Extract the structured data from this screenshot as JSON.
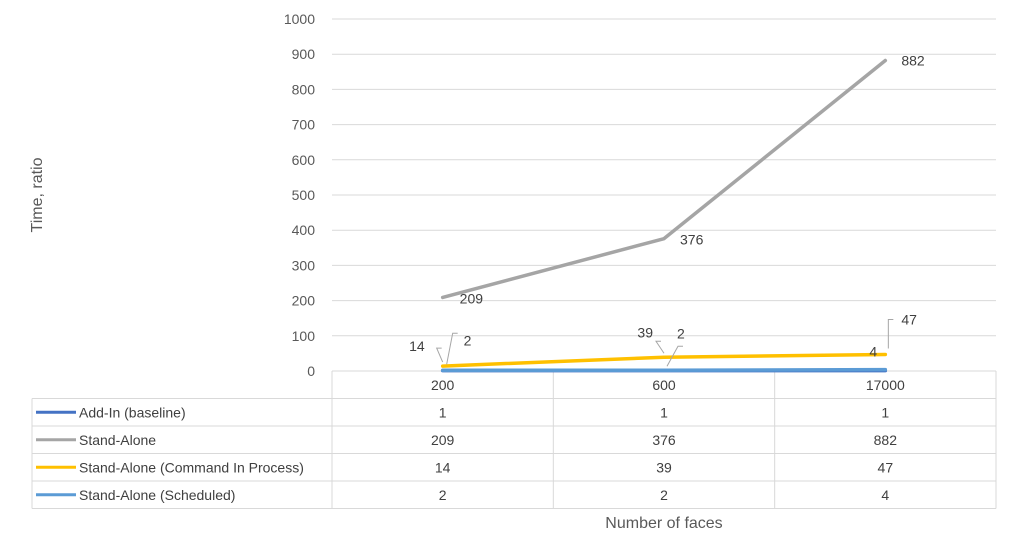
{
  "chart_data": {
    "type": "line",
    "categories": [
      "200",
      "600",
      "17000"
    ],
    "series": [
      {
        "name": "Add-In (baseline)",
        "values": [
          1,
          1,
          1
        ],
        "color": "#4472c4",
        "labels": false
      },
      {
        "name": "Stand-Alone",
        "values": [
          209,
          376,
          882
        ],
        "color": "#a5a5a5",
        "labels": true
      },
      {
        "name": "Stand-Alone (Command In Process)",
        "values": [
          14,
          39,
          47
        ],
        "color": "#ffc000",
        "labels": true
      },
      {
        "name": "Stand-Alone (Scheduled)",
        "values": [
          2,
          2,
          4
        ],
        "color": "#5b9bd5",
        "labels": true
      }
    ],
    "xlabel": "Number of faces",
    "ylabel": "Time, ratio",
    "ylim": [
      0,
      1000
    ],
    "yticks": [
      0,
      100,
      200,
      300,
      400,
      500,
      600,
      700,
      800,
      900,
      1000
    ],
    "grid": true,
    "data_table": true
  }
}
